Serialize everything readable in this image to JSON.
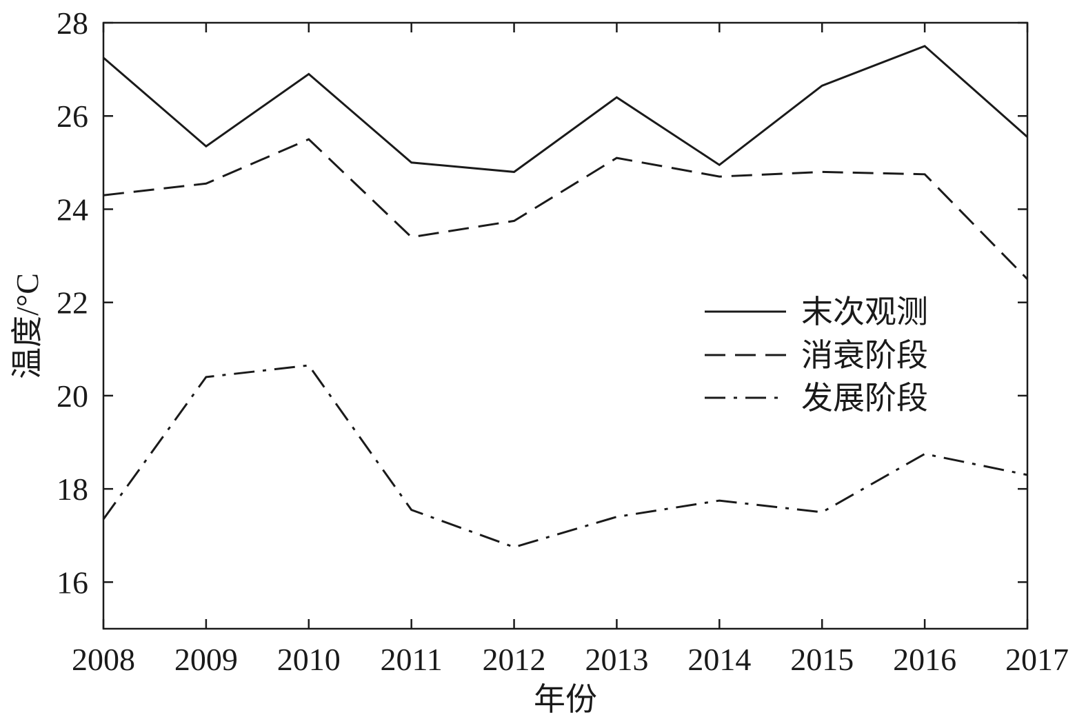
{
  "chart_data": {
    "type": "line",
    "x": [
      2008,
      2009,
      2010,
      2011,
      2012,
      2013,
      2014,
      2015,
      2016,
      2017
    ],
    "series": [
      {
        "name": "末次观测",
        "style": "solid",
        "values": [
          27.25,
          25.35,
          26.9,
          25.0,
          24.8,
          26.4,
          24.95,
          26.65,
          27.5,
          25.55
        ]
      },
      {
        "name": "消衰阶段",
        "style": "dashed",
        "values": [
          24.3,
          24.55,
          25.5,
          23.4,
          23.75,
          25.1,
          24.7,
          24.8,
          24.75,
          22.5
        ]
      },
      {
        "name": "发展阶段",
        "style": "dashdot",
        "values": [
          17.35,
          20.4,
          20.65,
          17.55,
          16.75,
          17.4,
          17.75,
          17.5,
          18.75,
          18.3
        ]
      }
    ],
    "xlabel": "年份",
    "ylabel": "温度/°C",
    "xlim": [
      2008,
      2017
    ],
    "ylim": [
      15,
      28
    ],
    "yticks": [
      16,
      18,
      20,
      22,
      24,
      26,
      28
    ],
    "xticks": [
      2008,
      2009,
      2010,
      2011,
      2012,
      2013,
      2014,
      2015,
      2016,
      2017
    ],
    "grid": false,
    "legend_position": "right, vertically centered",
    "line_color": "#1a1a1a"
  }
}
